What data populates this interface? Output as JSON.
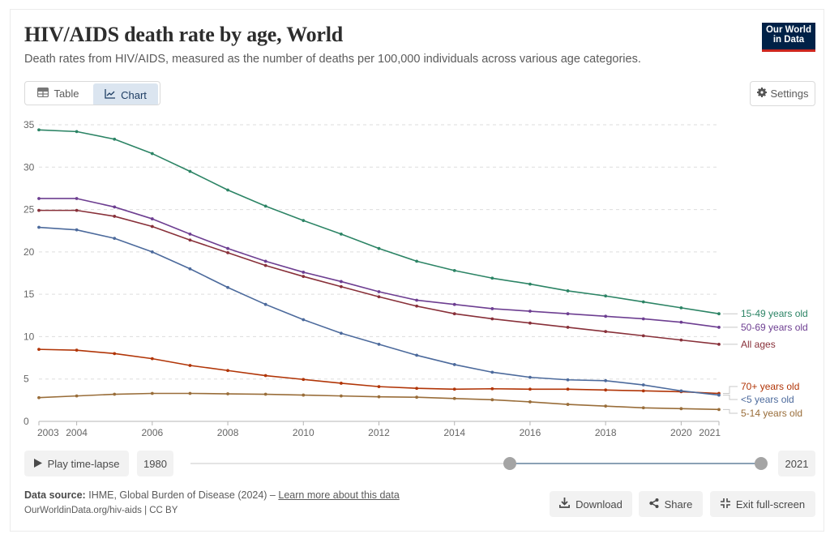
{
  "header": {
    "title": "HIV/AIDS death rate by age, World",
    "subtitle": "Death rates from HIV/AIDS, measured as the number of deaths per 100,000 individuals across various age categories.",
    "logo_line1": "Our World",
    "logo_line2": "in Data",
    "logo_color": "#002147",
    "logo_accent": "#ce261e"
  },
  "tabs": [
    {
      "label": "Table",
      "icon": "table-icon",
      "active": false
    },
    {
      "label": "Chart",
      "icon": "line-chart-icon",
      "active": true
    }
  ],
  "settings_label": "Settings",
  "timeline": {
    "play_label": "Play time-lapse",
    "start_year_label": "1980",
    "end_year_label": "2021",
    "range_start": 2003,
    "range_end": 2021,
    "min": 1980,
    "max": 2021
  },
  "footer": {
    "source_label": "Data source:",
    "source_text": "IHME, Global Burden of Disease (2024) –",
    "learn_more": "Learn more about this data",
    "url_text": "OurWorldinData.org/hiv-aids | CC BY",
    "download_label": "Download",
    "share_label": "Share",
    "exit_fullscreen_label": "Exit full-screen"
  },
  "chart_data": {
    "type": "line",
    "title": "HIV/AIDS death rate by age, World",
    "subtitle": "Death rates from HIV/AIDS, measured as the number of deaths per 100,000 individuals across various age categories.",
    "xlabel": "",
    "ylabel": "",
    "x": [
      2003,
      2004,
      2005,
      2006,
      2007,
      2008,
      2009,
      2010,
      2011,
      2012,
      2013,
      2014,
      2015,
      2016,
      2017,
      2018,
      2019,
      2020,
      2021
    ],
    "xticks": [
      "2003",
      "2004",
      "2006",
      "2008",
      "2010",
      "2012",
      "2014",
      "2016",
      "2018",
      "2020",
      "2021"
    ],
    "yticks": [
      "0",
      "5",
      "10",
      "15",
      "20",
      "25",
      "30",
      "35"
    ],
    "ylim": [
      0,
      35
    ],
    "xlim": [
      2003,
      2021
    ],
    "grid": "horizontal-dashed",
    "legend": "right-inline-labels",
    "series": [
      {
        "name": "15-49 years old",
        "color": "#2c8465",
        "values": [
          34.4,
          34.2,
          33.3,
          31.6,
          29.5,
          27.3,
          25.4,
          23.7,
          22.1,
          20.4,
          18.9,
          17.8,
          16.9,
          16.2,
          15.4,
          14.8,
          14.1,
          13.4,
          12.7
        ]
      },
      {
        "name": "50-69 years old",
        "color": "#6d3e91",
        "values": [
          26.3,
          26.3,
          25.3,
          23.9,
          22.1,
          20.4,
          18.9,
          17.6,
          16.5,
          15.3,
          14.3,
          13.8,
          13.3,
          13.0,
          12.7,
          12.4,
          12.1,
          11.7,
          11.1
        ]
      },
      {
        "name": "All ages",
        "color": "#883039",
        "values": [
          24.9,
          24.9,
          24.2,
          23.0,
          21.4,
          19.9,
          18.4,
          17.1,
          15.9,
          14.7,
          13.6,
          12.7,
          12.1,
          11.6,
          11.1,
          10.6,
          10.1,
          9.6,
          9.1
        ]
      },
      {
        "name": "70+ years old",
        "color": "#b13507",
        "values": [
          8.5,
          8.4,
          8.0,
          7.4,
          6.6,
          6.0,
          5.4,
          4.95,
          4.5,
          4.1,
          3.9,
          3.8,
          3.85,
          3.8,
          3.8,
          3.7,
          3.6,
          3.5,
          3.3
        ]
      },
      {
        "name": "<5 years old",
        "color": "#4c6a9c",
        "values": [
          22.9,
          22.6,
          21.6,
          20.0,
          18.0,
          15.8,
          13.8,
          12.0,
          10.4,
          9.1,
          7.8,
          6.7,
          5.8,
          5.2,
          4.9,
          4.8,
          4.3,
          3.6,
          3.1
        ]
      },
      {
        "name": "5-14 years old",
        "color": "#996d39",
        "values": [
          2.8,
          3.0,
          3.2,
          3.3,
          3.3,
          3.25,
          3.2,
          3.1,
          3.0,
          2.9,
          2.85,
          2.7,
          2.55,
          2.3,
          2.0,
          1.8,
          1.6,
          1.5,
          1.4
        ]
      }
    ]
  }
}
